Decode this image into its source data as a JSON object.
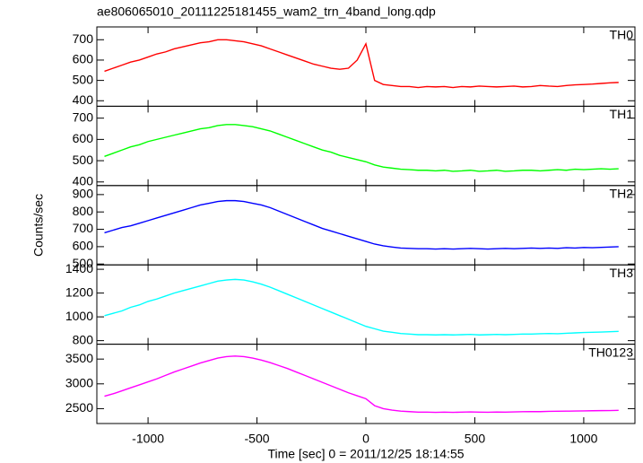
{
  "chart_data": {
    "type": "line",
    "title": "ae806065010_20111225181455_wam2_trn_4band_long.qdp",
    "xlabel": "Time [sec] 0 = 2011/12/25 18:14:55",
    "ylabel": "Counts/sec",
    "xlim": [
      -1235,
      1235
    ],
    "xticks": [
      -1000,
      -500,
      0,
      500,
      1000
    ],
    "x": [
      -1200,
      -1160,
      -1120,
      -1080,
      -1040,
      -1000,
      -960,
      -920,
      -880,
      -840,
      -800,
      -760,
      -720,
      -680,
      -640,
      -600,
      -560,
      -520,
      -480,
      -440,
      -400,
      -360,
      -320,
      -280,
      -240,
      -200,
      -160,
      -120,
      -80,
      -40,
      0,
      40,
      80,
      120,
      160,
      200,
      240,
      280,
      320,
      360,
      400,
      440,
      480,
      520,
      560,
      600,
      640,
      680,
      720,
      760,
      800,
      840,
      880,
      920,
      960,
      1000,
      1040,
      1080,
      1120,
      1160
    ],
    "series": [
      {
        "name": "TH0",
        "color": "#ff0000",
        "ylim": [
          373,
          763
        ],
        "yticks": [
          400,
          500,
          600,
          700
        ],
        "values": [
          545,
          560,
          575,
          590,
          600,
          615,
          630,
          640,
          655,
          665,
          675,
          685,
          690,
          700,
          700,
          695,
          690,
          680,
          670,
          655,
          640,
          625,
          610,
          595,
          580,
          570,
          560,
          555,
          560,
          600,
          680,
          500,
          480,
          475,
          470,
          470,
          465,
          470,
          468,
          470,
          465,
          470,
          468,
          472,
          470,
          468,
          470,
          472,
          468,
          470,
          475,
          472,
          470,
          475,
          478,
          480,
          482,
          485,
          488,
          490
        ]
      },
      {
        "name": "TH1",
        "color": "#00ff00",
        "ylim": [
          383,
          756
        ],
        "yticks": [
          400,
          500,
          600,
          700
        ],
        "values": [
          520,
          535,
          550,
          565,
          575,
          590,
          600,
          610,
          620,
          630,
          640,
          650,
          655,
          665,
          670,
          670,
          665,
          660,
          650,
          640,
          625,
          610,
          595,
          580,
          565,
          550,
          540,
          525,
          515,
          505,
          495,
          480,
          470,
          465,
          460,
          458,
          455,
          455,
          452,
          455,
          450,
          452,
          455,
          450,
          452,
          455,
          450,
          452,
          455,
          455,
          452,
          455,
          458,
          455,
          460,
          458,
          460,
          462,
          460,
          462
        ]
      },
      {
        "name": "TH2",
        "color": "#0000ff",
        "ylim": [
          495,
          952
        ],
        "yticks": [
          500,
          600,
          700,
          800,
          900
        ],
        "values": [
          680,
          695,
          710,
          720,
          735,
          750,
          765,
          780,
          795,
          810,
          825,
          840,
          850,
          860,
          865,
          865,
          860,
          850,
          840,
          825,
          805,
          785,
          765,
          745,
          725,
          705,
          690,
          675,
          660,
          645,
          630,
          615,
          605,
          598,
          592,
          590,
          588,
          588,
          586,
          588,
          586,
          588,
          590,
          588,
          586,
          588,
          590,
          588,
          590,
          592,
          590,
          592,
          590,
          594,
          592,
          595,
          594,
          596,
          598,
          600
        ]
      },
      {
        "name": "TH3",
        "color": "#00ffff",
        "ylim": [
          770,
          1437
        ],
        "yticks": [
          800,
          1000,
          1200,
          1400
        ],
        "values": [
          1010,
          1030,
          1050,
          1080,
          1100,
          1130,
          1150,
          1175,
          1200,
          1220,
          1240,
          1260,
          1280,
          1300,
          1310,
          1315,
          1310,
          1295,
          1275,
          1250,
          1220,
          1190,
          1160,
          1130,
          1100,
          1070,
          1040,
          1010,
          980,
          950,
          920,
          900,
          880,
          870,
          860,
          855,
          850,
          850,
          848,
          850,
          848,
          850,
          852,
          848,
          850,
          852,
          850,
          852,
          855,
          855,
          858,
          860,
          858,
          862,
          865,
          868,
          870,
          872,
          875,
          878
        ]
      },
      {
        "name": "TH0123",
        "color": "#ff00ff",
        "ylim": [
          2200,
          3800
        ],
        "yticks": [
          2500,
          3000,
          3500
        ],
        "values": [
          2750,
          2800,
          2860,
          2920,
          2980,
          3040,
          3100,
          3170,
          3240,
          3300,
          3360,
          3420,
          3470,
          3520,
          3550,
          3560,
          3550,
          3520,
          3480,
          3430,
          3370,
          3310,
          3240,
          3170,
          3100,
          3030,
          2960,
          2890,
          2820,
          2760,
          2700,
          2560,
          2500,
          2470,
          2450,
          2440,
          2430,
          2430,
          2425,
          2430,
          2425,
          2430,
          2435,
          2430,
          2428,
          2432,
          2430,
          2435,
          2438,
          2440,
          2440,
          2445,
          2448,
          2450,
          2452,
          2455,
          2458,
          2460,
          2462,
          2465
        ]
      }
    ]
  }
}
